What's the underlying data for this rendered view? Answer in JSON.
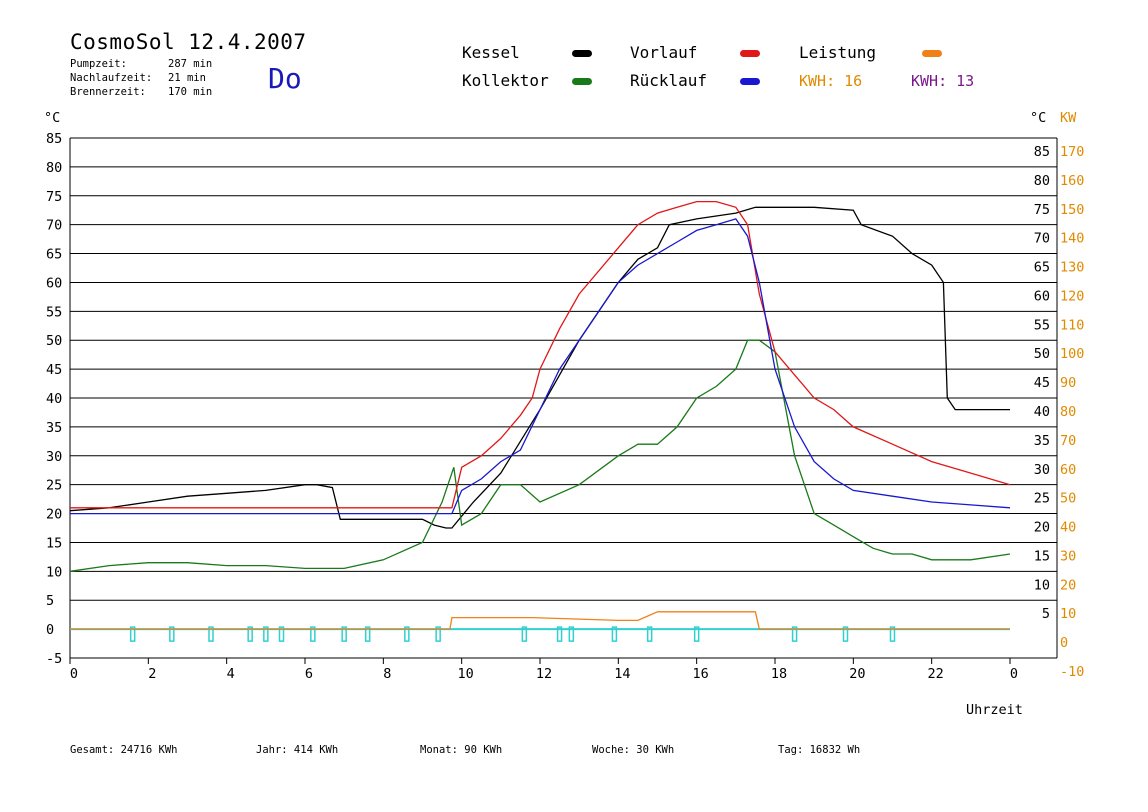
{
  "header": {
    "title": "CosmoSol 12.4.2007",
    "weekday": "Do",
    "stats": [
      {
        "label": "Pumpzeit:",
        "value": "287 min"
      },
      {
        "label": "Nachlaufzeit:",
        "value": "21 min"
      },
      {
        "label": "Brennerzeit:",
        "value": "170 min"
      }
    ]
  },
  "legend": {
    "kessel": {
      "label": "Kessel",
      "color": "#000000"
    },
    "kollektor": {
      "label": "Kollektor",
      "color": "#1a7a1a"
    },
    "vorlauf": {
      "label": "Vorlauf",
      "color": "#e01818"
    },
    "ruecklauf": {
      "label": "Rücklauf",
      "color": "#1818d0"
    },
    "leistung": {
      "label": "Leistung",
      "color": "#f08018"
    },
    "kwh_orange": "KWH: 16",
    "kwh_purple": "KWH: 13",
    "kwh_orange_color": "#e08a00",
    "kwh_purple_color": "#7a1a8a"
  },
  "axes": {
    "left_unit": "°C",
    "right_unit_c": "°C",
    "right_unit_kw": "KW",
    "xlabel": "Uhrzeit"
  },
  "footer": {
    "gesamt": "Gesamt:  24716 KWh",
    "jahr": "Jahr:   414 KWh",
    "monat": "Monat:   90 KWh",
    "woche": "Woche:   30 KWh",
    "tag": "Tag:  16832 Wh"
  },
  "chart_data": {
    "type": "line",
    "title": "CosmoSol 12.4.2007",
    "xlabel": "Uhrzeit",
    "ylabel": "°C",
    "y2label": "KW",
    "xlim": [
      0,
      24
    ],
    "ylim": [
      -5,
      85
    ],
    "y2lim": [
      -10,
      170
    ],
    "x_ticks": [
      "0",
      "2",
      "4",
      "6",
      "8",
      "10",
      "12",
      "14",
      "16",
      "18",
      "20",
      "22",
      "0"
    ],
    "y_ticks_left": [
      85,
      80,
      75,
      70,
      65,
      60,
      55,
      50,
      45,
      40,
      35,
      30,
      25,
      20,
      15,
      10,
      5,
      0,
      -5
    ],
    "y_ticks_right_c": [
      85,
      80,
      75,
      70,
      65,
      60,
      55,
      50,
      45,
      40,
      35,
      30,
      25,
      20,
      15,
      10,
      5
    ],
    "y_ticks_right_kw": [
      170,
      160,
      150,
      140,
      130,
      120,
      110,
      100,
      90,
      80,
      70,
      60,
      50,
      40,
      30,
      20,
      10,
      0,
      -10
    ],
    "grid": true,
    "series": [
      {
        "name": "Kessel",
        "color": "#000000",
        "x": [
          0,
          1,
          2,
          3,
          4,
          5,
          6,
          6.3,
          6.7,
          6.9,
          8,
          9,
          9.3,
          9.6,
          9.75,
          10.3,
          11,
          12,
          13,
          14,
          14.5,
          15,
          15.3,
          16,
          17,
          17.5,
          18,
          19,
          20,
          20.2,
          21,
          21.5,
          22,
          22.3,
          22.4,
          22.6,
          23,
          24
        ],
        "y": [
          20.5,
          21,
          22,
          23,
          23.5,
          24,
          25,
          25,
          24.5,
          19,
          19,
          19,
          18,
          17.5,
          17.5,
          22,
          27,
          38,
          50,
          60,
          64,
          66,
          70,
          71,
          72,
          73,
          73,
          73,
          72.5,
          70,
          68,
          65,
          63,
          60,
          40,
          38,
          38,
          38
        ]
      },
      {
        "name": "Kollektor",
        "color": "#1a7a1a",
        "x": [
          0,
          1,
          2,
          3,
          4,
          5,
          6,
          7,
          8,
          9,
          9.5,
          9.8,
          10,
          10.5,
          11,
          11.5,
          12,
          13,
          14,
          14.5,
          15,
          15.5,
          16,
          16.5,
          17,
          17.3,
          17.6,
          18,
          18.5,
          19,
          19.5,
          20,
          20.5,
          21,
          21.5,
          22,
          23,
          24
        ],
        "y": [
          10,
          11,
          11.5,
          11.5,
          11,
          11,
          10.5,
          10.5,
          12,
          15,
          22,
          28,
          18,
          20,
          25,
          25,
          22,
          25,
          30,
          32,
          32,
          35,
          40,
          42,
          45,
          50,
          50,
          48,
          30,
          20,
          18,
          16,
          14,
          13,
          13,
          12,
          12,
          13
        ]
      },
      {
        "name": "Vorlauf",
        "color": "#e01818",
        "x": [
          0,
          1,
          2,
          3,
          4,
          5,
          6,
          7,
          8,
          9,
          9.75,
          10,
          10.5,
          11,
          11.5,
          11.8,
          12,
          12.5,
          13,
          14,
          14.5,
          15,
          15.5,
          16,
          16.5,
          17,
          17.3,
          17.6,
          18,
          18.5,
          19,
          19.5,
          20,
          21,
          22,
          23,
          24
        ],
        "y": [
          21,
          21,
          21,
          21,
          21,
          21,
          21,
          21,
          21,
          21,
          21,
          28,
          30,
          33,
          37,
          40,
          45,
          52,
          58,
          66,
          70,
          72,
          73,
          74,
          74,
          73,
          70,
          58,
          48,
          44,
          40,
          38,
          35,
          32,
          29,
          27,
          25
        ]
      },
      {
        "name": "Rücklauf",
        "color": "#1818d0",
        "x": [
          0,
          1,
          2,
          3,
          4,
          5,
          6,
          7,
          8,
          9,
          9.75,
          10,
          10.5,
          11,
          11.5,
          12,
          12.5,
          13,
          13.5,
          14,
          14.5,
          15,
          15.5,
          16,
          16.5,
          17,
          17.3,
          17.6,
          18,
          18.5,
          19,
          19.5,
          20,
          21,
          22,
          23,
          24
        ],
        "y": [
          20,
          20,
          20,
          20,
          20,
          20,
          20,
          20,
          20,
          20,
          20,
          24,
          26,
          29,
          31,
          38,
          45,
          50,
          55,
          60,
          63,
          65,
          67,
          69,
          70,
          71,
          68,
          60,
          45,
          35,
          29,
          26,
          24,
          23,
          22,
          21.5,
          21
        ]
      },
      {
        "name": "Leistung",
        "color": "#f08018",
        "x": [
          0,
          9.7,
          9.75,
          11.5,
          11.8,
          14,
          14.5,
          15,
          16,
          17.5,
          17.6,
          24
        ],
        "y": [
          0,
          0,
          2,
          2,
          2,
          1.5,
          1.5,
          3,
          3,
          3,
          0,
          0
        ]
      }
    ]
  }
}
